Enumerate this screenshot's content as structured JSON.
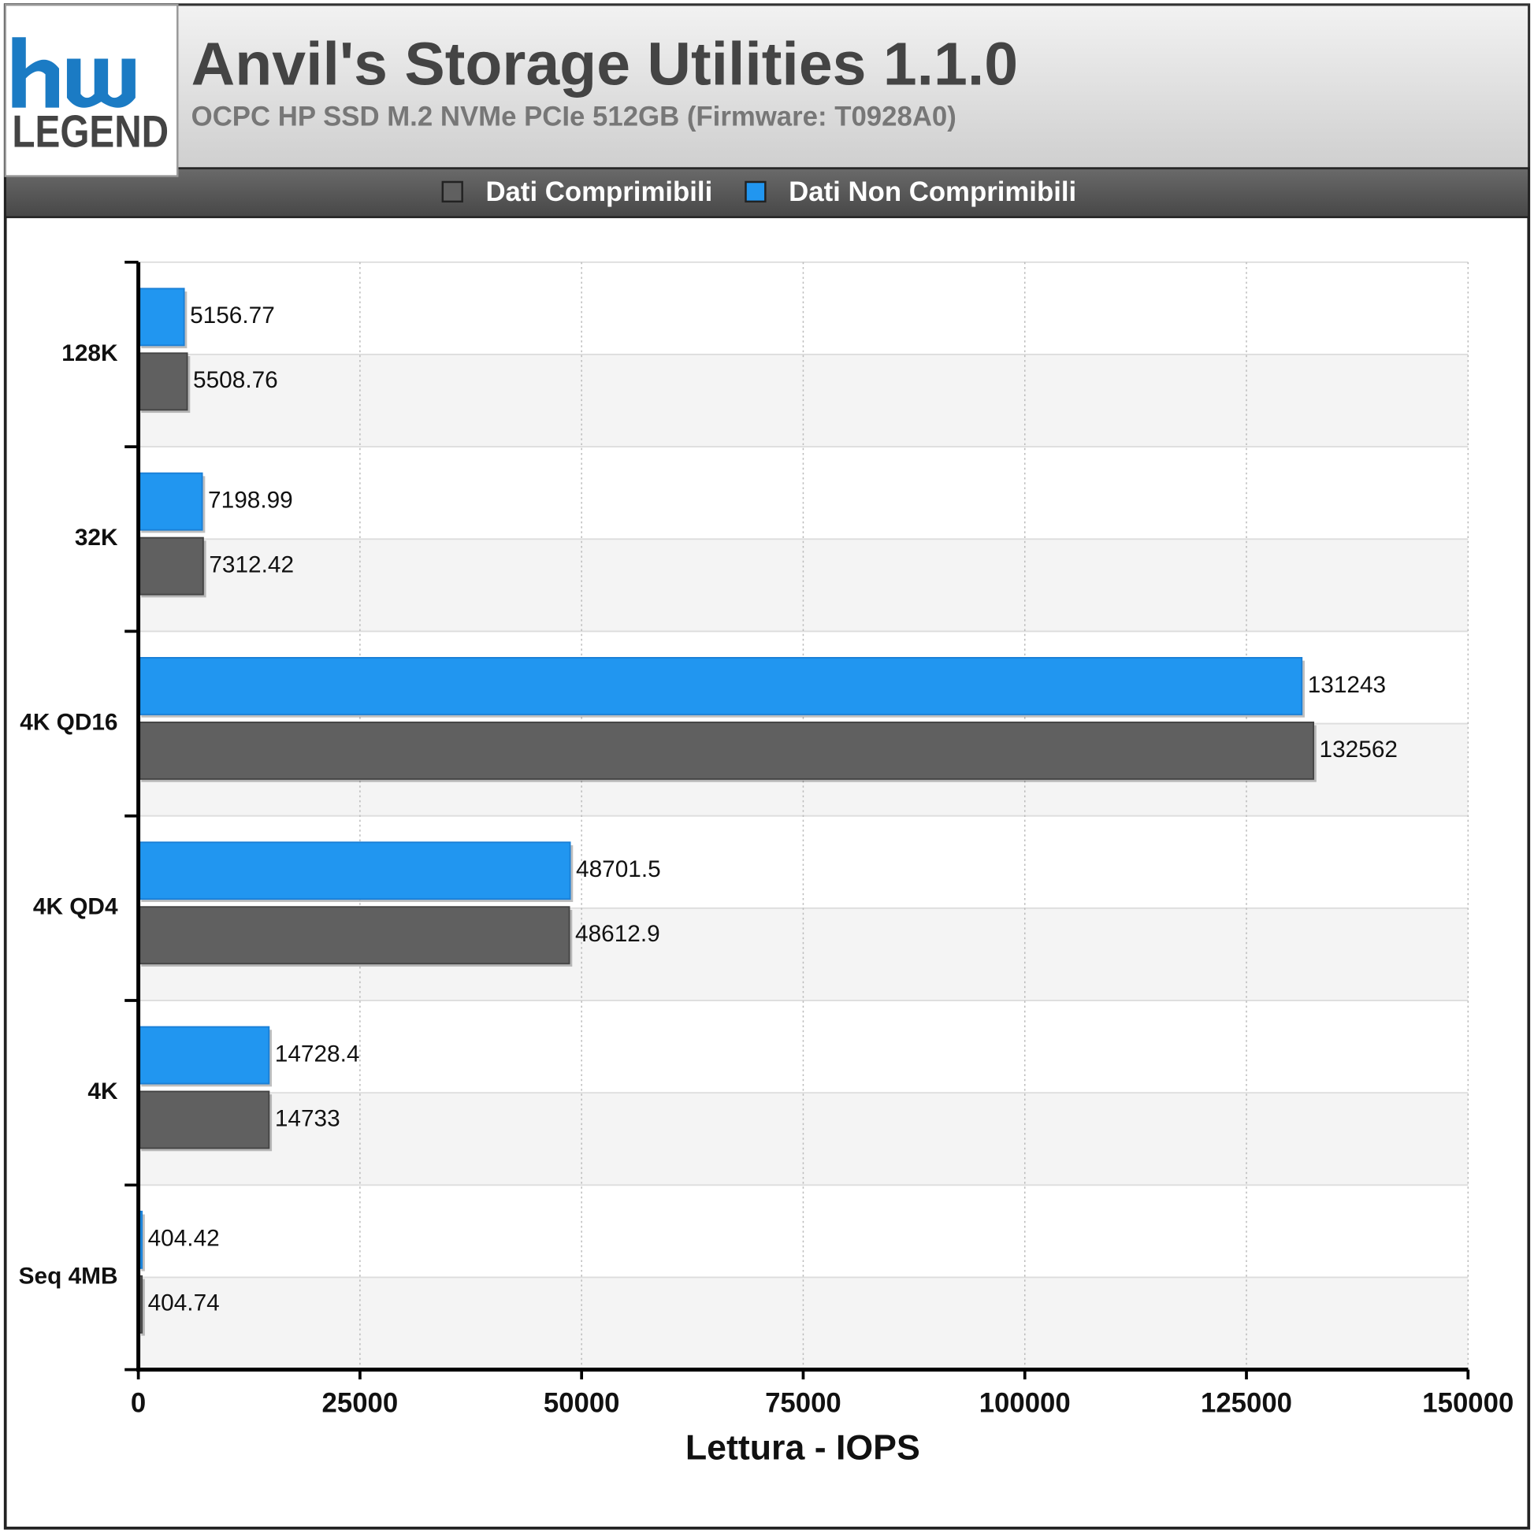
{
  "chart_data": {
    "type": "hbar",
    "title": "Anvil's Storage Utilities 1.1.0",
    "subtitle": "OCPC HP SSD M.2 NVMe PCIe 512GB (Firmware: T0928A0)",
    "logo_text": "LEGEND",
    "x_label": "Lettura - IOPS",
    "categories": [
      "128K",
      "32K",
      "4K QD16",
      "4K QD4",
      "4K",
      "Seq 4MB"
    ],
    "series": [
      {
        "name": "Dati Comprimibili",
        "color": "#606060",
        "values": [
          5508.76,
          7312.42,
          132562,
          48612.9,
          14733,
          404.74
        ]
      },
      {
        "name": "Dati Non Comprimibili",
        "color": "#2196f0",
        "values": [
          5156.77,
          7198.99,
          131243,
          48701.5,
          14728.4,
          404.42
        ]
      }
    ],
    "xlim": [
      0,
      150000
    ],
    "xticks": [
      0,
      25000,
      50000,
      75000,
      100000,
      125000,
      150000
    ],
    "grid": true,
    "legend": "top"
  }
}
